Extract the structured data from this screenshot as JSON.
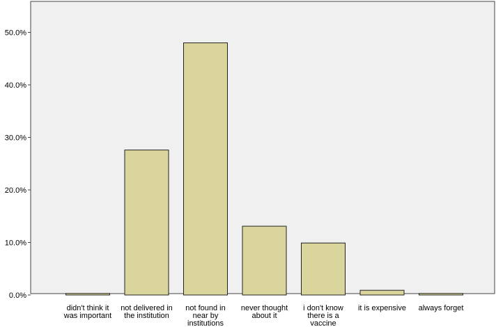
{
  "chart_data": {
    "type": "bar",
    "categories": [
      [
        "didn't think it",
        "was important"
      ],
      [
        "not delivered in",
        "the institution"
      ],
      [
        "not found in",
        "near by",
        "institutions"
      ],
      [
        "never thought",
        "about it"
      ],
      [
        "i don't know",
        "there is a",
        "vaccine"
      ],
      [
        "it is expensive"
      ],
      [
        "always forget"
      ]
    ],
    "values": [
      0.3,
      27.6,
      48.0,
      13.1,
      9.9,
      0.9,
      0.3
    ],
    "ylim": [
      0,
      55
    ],
    "yticks": [
      0,
      10,
      20,
      30,
      40,
      50
    ],
    "ytick_labels": [
      "0.0%",
      "10.0%",
      "20.0%",
      "30.0%",
      "40.0%",
      "50.0%"
    ],
    "title": "",
    "xlabel": "",
    "ylabel": "",
    "grid": false,
    "colors": {
      "plot_bg": "#f0f0f0",
      "bar_fill": "#d9d59c",
      "bar_stroke": "#222222",
      "frame": "#444444"
    }
  }
}
